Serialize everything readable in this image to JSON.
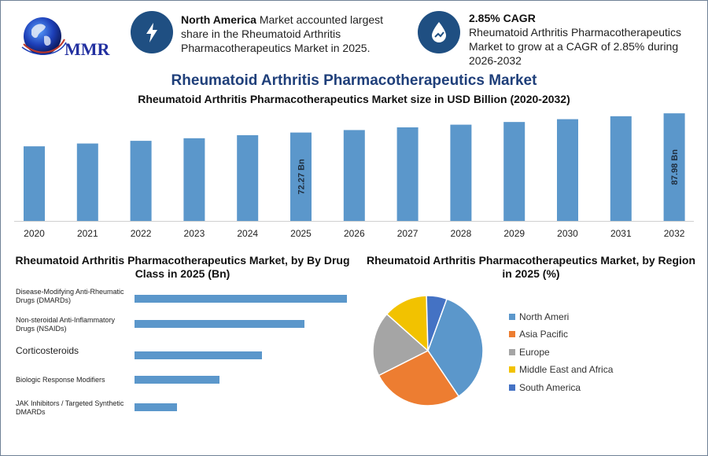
{
  "logo": {
    "text": "MMR",
    "icon": "globe-icon"
  },
  "info_left": {
    "icon": "lightning-icon",
    "bold": "North America",
    "text": " Market accounted largest share in the Rheumatoid Arthritis Pharmacotherapeutics Market in 2025."
  },
  "info_right": {
    "icon": "growth-drop-icon",
    "bold": "2.85% CAGR",
    "text": "Rheumatoid Arthritis Pharmacotherapeutics Market to grow at a CAGR of 2.85% during 2026-2032"
  },
  "title": "Rheumatoid Arthritis Pharmacotherapeutics Market",
  "colors": {
    "accent": "#1f4f82",
    "bar": "#5b97cb",
    "title": "#1f3f7a"
  },
  "chart_data": [
    {
      "type": "bar",
      "title": "Rheumatoid Arthritis Pharmacotherapeutics Market size in USD Billion (2020-2032)",
      "categories": [
        "2020",
        "2021",
        "2022",
        "2023",
        "2024",
        "2025",
        "2026",
        "2027",
        "2028",
        "2029",
        "2030",
        "2031",
        "2032"
      ],
      "values": [
        61.0,
        63.3,
        65.5,
        67.6,
        70.1,
        72.27,
        74.3,
        76.5,
        78.7,
        80.9,
        83.2,
        85.6,
        87.98
      ],
      "data_labels": [
        {
          "index": 5,
          "text": "72.27 Bn"
        },
        {
          "index": 12,
          "text": "87.98 Bn"
        }
      ],
      "ylim": [
        0,
        90
      ],
      "xlabel": "",
      "ylabel": "",
      "grid": false
    },
    {
      "type": "bar",
      "orientation": "horizontal",
      "title": "Rheumatoid Arthritis Pharmacotherapeutics Market, by By Drug Class in 2025 (Bn)",
      "categories": [
        "Disease-Modifying Anti-Rheumatic Drugs (DMARDs)",
        "Non-steroidal Anti-Inflammatory Drugs (NSAIDs)",
        "Corticosteroids",
        "Biologic Response Modifiers",
        "JAK Inhibitors / Targeted Synthetic DMARDs"
      ],
      "values": [
        27,
        21.6,
        16.2,
        10.8,
        5.4
      ],
      "xlim": [
        0,
        27
      ]
    },
    {
      "type": "pie",
      "title": "Rheumatoid Arthritis Pharmacotherapeutics Market, by Region in 2025 (%)",
      "labels": [
        "North Ameri",
        "Asia Pacific",
        "Europe",
        "Middle East and Africa",
        "South America"
      ],
      "values": [
        35,
        27,
        19,
        13,
        6
      ],
      "colors": [
        "#5b97cb",
        "#ed7d31",
        "#a5a5a5",
        "#f2c200",
        "#4472c4"
      ],
      "legend": "right"
    }
  ]
}
